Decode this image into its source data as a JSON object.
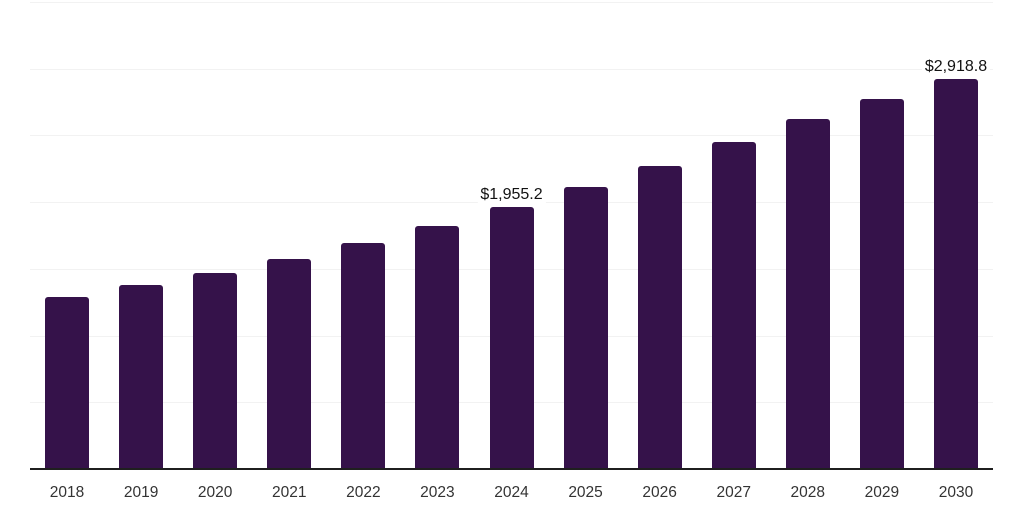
{
  "chart_data": {
    "type": "bar",
    "title": "",
    "xlabel": "",
    "ylabel": "",
    "categories": [
      "2018",
      "2019",
      "2020",
      "2021",
      "2022",
      "2023",
      "2024",
      "2025",
      "2026",
      "2027",
      "2028",
      "2029",
      "2030"
    ],
    "values": [
      1280,
      1370,
      1460,
      1570,
      1690,
      1815,
      1955.2,
      2105,
      2265,
      2440,
      2615,
      2765,
      2918.8
    ],
    "labeled_bars": [
      {
        "category": "2024",
        "label": "$1,955.2"
      },
      {
        "category": "2030",
        "label": "$2,918.8"
      }
    ],
    "ylim": [
      0,
      3500
    ],
    "gridline_step": 500,
    "grid": true,
    "legend": false,
    "y_axis_tick_labels_visible": false
  },
  "style": {
    "bar_color": "#35124a",
    "axis_color": "#1f1f1f",
    "gridline_color": "#f2f2f2",
    "data_label_color": "#121212",
    "tick_label_color": "#333333",
    "background": "#ffffff"
  }
}
